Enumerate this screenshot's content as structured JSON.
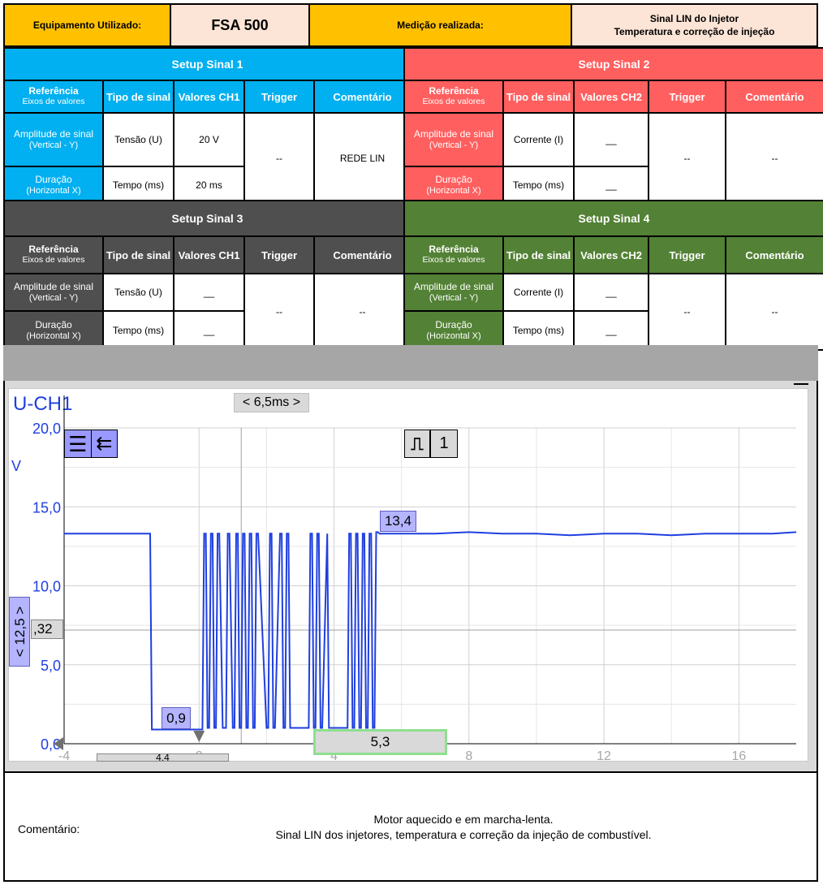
{
  "header": {
    "equipment_label": "Equipamento Utilizado:",
    "equipment_value": "FSA 500",
    "measurement_label": "Medição realizada:",
    "measurement_line1": "Sinal LIN do Injetor",
    "measurement_line2": "Temperatura e correção de injeção"
  },
  "colors": {
    "setup1": "#00b0f0",
    "setup2": "#ff5f5f",
    "setup3": "#4f4f4f",
    "setup4": "#538135",
    "header_yellow": "#ffc000",
    "trace": "#1f3fe0"
  },
  "setups": [
    {
      "title": "Setup Sinal 1",
      "col_ref": "Referência",
      "col_ref_sub": "Eixos de valores",
      "col_type": "Tipo de sinal",
      "col_values": "Valores CH1",
      "col_trigger": "Trigger",
      "col_comment": "Comentário",
      "row1_label": "Amplitude de sinal",
      "row1_sub": "(Vertical - Y)",
      "row2_label": "Duração",
      "row2_sub": "(Horizontal X)",
      "row1_type": "Tensão (U)",
      "row2_type": "Tempo (ms)",
      "row1_value": "20 V",
      "row2_value": "20 ms",
      "trigger": "--",
      "comment": "REDE LIN"
    },
    {
      "title": "Setup Sinal 2",
      "col_ref": "Referência",
      "col_ref_sub": "Eixos de valores",
      "col_type": "Tipo de sinal",
      "col_values": "Valores CH2",
      "col_trigger": "Trigger",
      "col_comment": "Comentário",
      "row1_label": "Amplitude de sinal",
      "row1_sub": "(Vertical - Y)",
      "row2_label": "Duração",
      "row2_sub": "(Horizontal X)",
      "row1_type": "Corrente (I)",
      "row2_type": "Tempo (ms)",
      "row1_value": "__",
      "row2_value": "__",
      "trigger": "--",
      "comment": "--"
    },
    {
      "title": "Setup Sinal 3",
      "col_ref": "Referência",
      "col_ref_sub": "Eixos de valores",
      "col_type": "Tipo de sinal",
      "col_values": "Valores CH1",
      "col_trigger": "Trigger",
      "col_comment": "Comentário",
      "row1_label": "Amplitude de sinal",
      "row1_sub": "(Vertical - Y)",
      "row2_label": "Duração",
      "row2_sub": "(Horizontal X)",
      "row1_type": "Tensão (U)",
      "row2_type": "Tempo (ms)",
      "row1_value": "__",
      "row2_value": "__",
      "trigger": "--",
      "comment": "--"
    },
    {
      "title": "Setup Sinal 4",
      "col_ref": "Referência",
      "col_ref_sub": "Eixos de valores",
      "col_type": "Tipo de sinal",
      "col_values": "Valores CH2",
      "col_trigger": "Trigger",
      "col_comment": "Comentário",
      "row1_label": "Amplitude de sinal",
      "row1_sub": "(Vertical - Y)",
      "row2_label": "Duração",
      "row2_sub": "(Horizontal X)",
      "row1_type": "Corrente (I)",
      "row2_type": "Tempo (ms)",
      "row1_value": "__",
      "row2_value": "__",
      "trigger": "--",
      "comment": "--"
    }
  ],
  "scope": {
    "channel": "U-CH1",
    "unit": "V",
    "time_window": "< 6,5ms >",
    "vertical_window": "< 12,5 >",
    "trigger_channel": "1",
    "cursor_h_value": ",32",
    "marker_high": "13,4",
    "marker_low": "0,9",
    "marker_duration": "5,3",
    "bottom_marker": "4,4"
  },
  "chart_data": {
    "type": "line",
    "title": "",
    "xlabel": "",
    "ylabel": "V",
    "xlim": [
      -4,
      17.7
    ],
    "ylim": [
      0,
      20
    ],
    "x_ticks": [
      "-4",
      "0",
      "4",
      "8",
      "12",
      "16"
    ],
    "y_ticks": [
      "0,0",
      "5,0",
      "10,0",
      "15,0",
      "20,0"
    ],
    "grid": true,
    "series": [
      {
        "name": "U-CH1",
        "x": [
          -4,
          -1.45,
          -1.4,
          0.1,
          0.15,
          0.2,
          0.25,
          0.3,
          0.35,
          0.4,
          0.45,
          0.5,
          0.55,
          0.6,
          0.7,
          0.8,
          0.85,
          0.9,
          1.0,
          1.05,
          1.1,
          1.15,
          1.2,
          1.25,
          1.3,
          1.35,
          1.4,
          1.45,
          1.5,
          1.55,
          1.6,
          1.65,
          1.7,
          1.75,
          2.0,
          2.05,
          2.1,
          2.15,
          2.2,
          2.25,
          2.4,
          2.45,
          2.5,
          2.55,
          2.6,
          2.65,
          2.7,
          2.75,
          3.2,
          3.25,
          3.3,
          3.35,
          3.4,
          3.45,
          3.5,
          3.55,
          3.6,
          3.65,
          3.8,
          3.85,
          4.4,
          4.45,
          4.5,
          4.55,
          4.6,
          4.65,
          4.7,
          4.75,
          4.8,
          4.85,
          4.9,
          4.95,
          5.0,
          5.05,
          5.1,
          5.15,
          5.2,
          5.25,
          5.3,
          5.35,
          5.5,
          6.0,
          7.0,
          8.0,
          9.0,
          10.0,
          11.0,
          12.0,
          13.0,
          14.0,
          15.0,
          16.0,
          17.0,
          17.7
        ],
        "values": [
          13.3,
          13.3,
          0.9,
          0.9,
          13.3,
          13.3,
          1.0,
          1.0,
          13.3,
          13.3,
          1.0,
          1.0,
          13.3,
          13.3,
          1.0,
          1.0,
          13.3,
          13.3,
          1.0,
          1.0,
          13.3,
          13.3,
          1.0,
          1.0,
          13.3,
          13.3,
          1.0,
          1.0,
          13.3,
          13.3,
          1.0,
          1.0,
          13.3,
          13.3,
          1.0,
          1.0,
          13.3,
          13.3,
          1.0,
          1.0,
          13.3,
          13.3,
          1.0,
          1.0,
          13.3,
          13.3,
          1.0,
          1.0,
          1.0,
          1.0,
          13.3,
          13.3,
          1.0,
          1.0,
          13.3,
          13.3,
          1.0,
          1.0,
          13.3,
          1.0,
          1.0,
          13.3,
          13.3,
          1.0,
          1.0,
          13.3,
          13.3,
          1.0,
          1.0,
          13.3,
          13.3,
          1.0,
          1.0,
          13.3,
          13.3,
          1.0,
          1.0,
          13.4,
          13.4,
          13.3,
          13.3,
          13.3,
          13.3,
          13.4,
          13.3,
          13.3,
          13.2,
          13.3,
          13.3,
          13.2,
          13.3,
          13.3,
          13.3,
          13.4
        ]
      }
    ]
  },
  "comment": {
    "label": "Comentário:",
    "line1": "Motor aquecido e em marcha-lenta.",
    "line2": "Sinal LIN dos injetores, temperatura e correção da injeção de combustível."
  }
}
